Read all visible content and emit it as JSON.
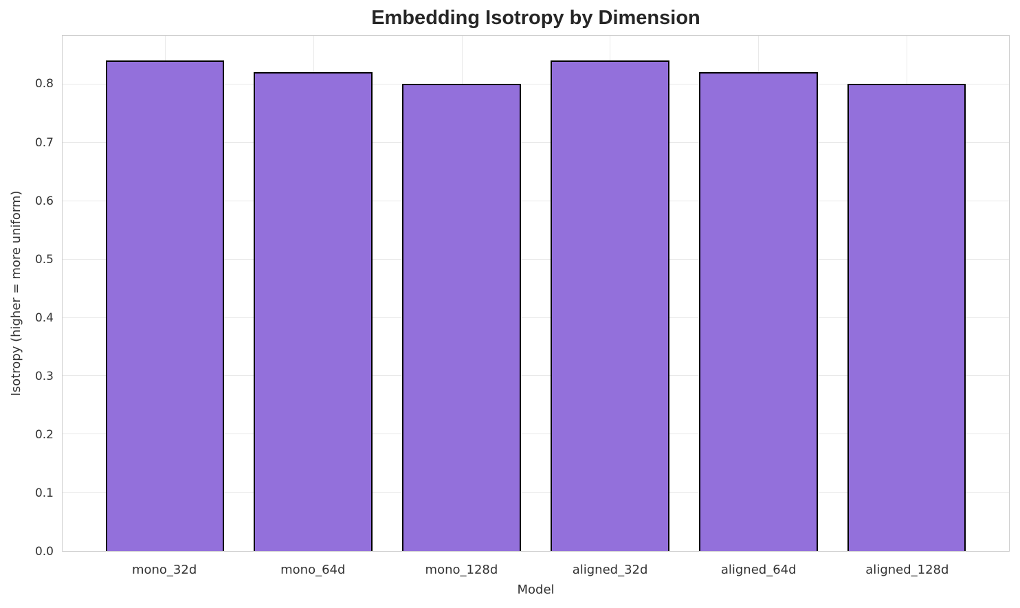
{
  "chart_data": {
    "type": "bar",
    "title": "Embedding Isotropy by Dimension",
    "xlabel": "Model",
    "ylabel": "Isotropy (higher = more uniform)",
    "categories": [
      "mono_32d",
      "mono_64d",
      "mono_128d",
      "aligned_32d",
      "aligned_64d",
      "aligned_128d"
    ],
    "values": [
      0.841,
      0.821,
      0.802,
      0.841,
      0.821,
      0.802
    ],
    "ylim": [
      0,
      0.884
    ],
    "yticks": [
      0.0,
      0.1,
      0.2,
      0.3,
      0.4,
      0.5,
      0.6,
      0.7,
      0.8
    ],
    "ytick_labels": [
      "0.0",
      "0.1",
      "0.2",
      "0.3",
      "0.4",
      "0.5",
      "0.6",
      "0.7",
      "0.8"
    ],
    "grid": true,
    "legend_position": "none",
    "bar_color": "#9370db",
    "bar_edge_color": "#000000",
    "grid_color": "#e9e9e9",
    "spine_color": "#cccccc",
    "title_color": "#262626",
    "tick_color": "#333333"
  }
}
